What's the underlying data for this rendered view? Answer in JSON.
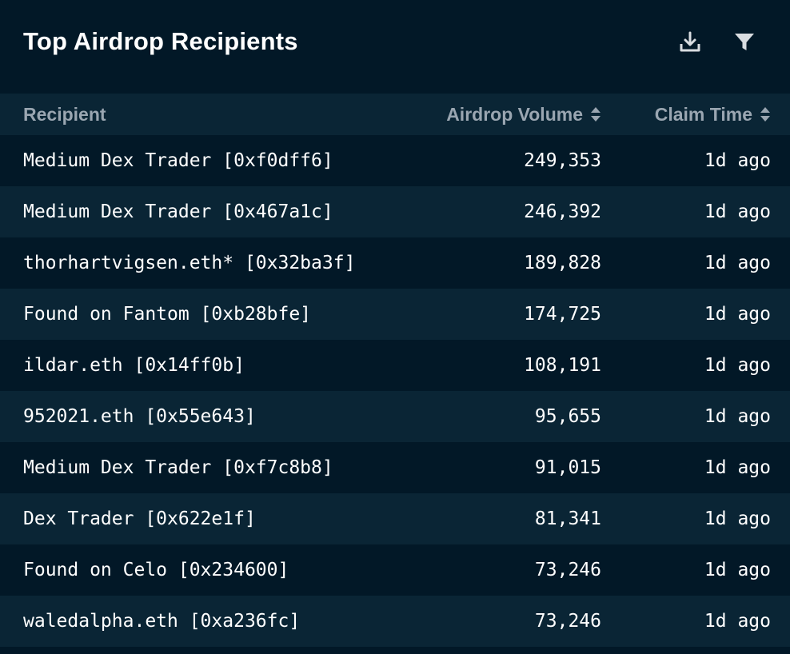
{
  "header": {
    "title": "Top Airdrop Recipients",
    "icons": [
      "download-icon",
      "filter-icon"
    ]
  },
  "columns": {
    "recipient": "Recipient",
    "volume": "Airdrop Volume",
    "claim": "Claim Time"
  },
  "rows": [
    {
      "recipient": "Medium Dex Trader [0xf0dff6]",
      "volume": "249,353",
      "claim": "1d ago"
    },
    {
      "recipient": "Medium Dex Trader [0x467a1c]",
      "volume": "246,392",
      "claim": "1d ago"
    },
    {
      "recipient": "thorhartvigsen.eth* [0x32ba3f]",
      "volume": "189,828",
      "claim": "1d ago"
    },
    {
      "recipient": "Found on Fantom [0xb28bfe]",
      "volume": "174,725",
      "claim": "1d ago"
    },
    {
      "recipient": "ildar.eth [0x14ff0b]",
      "volume": "108,191",
      "claim": "1d ago"
    },
    {
      "recipient": "952021.eth [0x55e643]",
      "volume": "95,655",
      "claim": "1d ago"
    },
    {
      "recipient": "Medium Dex Trader [0xf7c8b8]",
      "volume": "91,015",
      "claim": "1d ago"
    },
    {
      "recipient": "Dex Trader [0x622e1f]",
      "volume": "81,341",
      "claim": "1d ago"
    },
    {
      "recipient": "Found on Celo [0x234600]",
      "volume": "73,246",
      "claim": "1d ago"
    },
    {
      "recipient": "waledalpha.eth [0xa236fc]",
      "volume": "73,246",
      "claim": "1d ago"
    }
  ],
  "colors": {
    "background": "#021827",
    "row_alt": "#0a2535",
    "header_text": "#9aa6b1",
    "icon": "#d9dde1"
  }
}
